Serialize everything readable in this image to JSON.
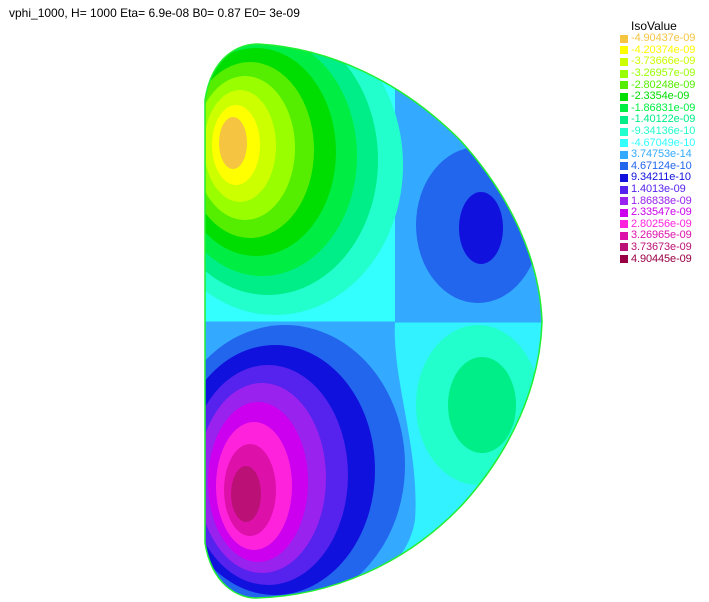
{
  "title": "vphi_1000, H= 1000 Eta= 6.9e-08 B0= 0.87 E0= 3e-09",
  "legend": {
    "title": "IsoValue",
    "items": [
      {
        "label": "-4.90437e-09",
        "color": "#f5c542"
      },
      {
        "label": "-4.20374e-09",
        "color": "#ffff00"
      },
      {
        "label": "-3.73666e-09",
        "color": "#ccff00"
      },
      {
        "label": "-3.26957e-09",
        "color": "#99ff00"
      },
      {
        "label": "-2.80248e-09",
        "color": "#55ee00"
      },
      {
        "label": "-2.3354e-09",
        "color": "#00dd00"
      },
      {
        "label": "-1.86831e-09",
        "color": "#00ee44"
      },
      {
        "label": "-1.40122e-09",
        "color": "#00ee88"
      },
      {
        "label": "-9.34136e-10",
        "color": "#22ffcc"
      },
      {
        "label": "-4.67049e-10",
        "color": "#33ffff"
      },
      {
        "label": "3.74753e-14",
        "color": "#33aaff"
      },
      {
        "label": "4.67124e-10",
        "color": "#2266ee"
      },
      {
        "label": "9.34211e-10",
        "color": "#1111dd"
      },
      {
        "label": "1.4013e-09",
        "color": "#5522ee"
      },
      {
        "label": "1.86838e-09",
        "color": "#9922ee"
      },
      {
        "label": "2.33547e-09",
        "color": "#cc00ee"
      },
      {
        "label": "2.80256e-09",
        "color": "#ff22dd"
      },
      {
        "label": "3.26965e-09",
        "color": "#dd11aa"
      },
      {
        "label": "3.73673e-09",
        "color": "#bb1177"
      },
      {
        "label": "4.90445e-09",
        "color": "#990044"
      }
    ]
  }
}
